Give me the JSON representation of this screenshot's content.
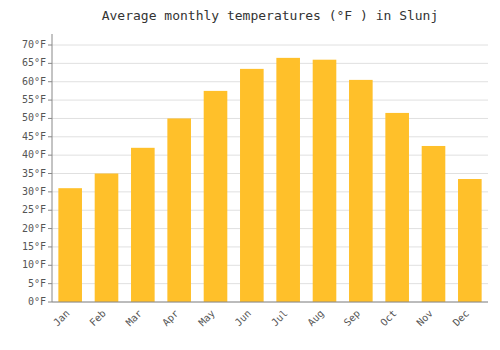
{
  "chart_data": {
    "type": "bar",
    "title": "Average monthly temperatures (°F ) in Slunj",
    "categories": [
      "Jan",
      "Feb",
      "Mar",
      "Apr",
      "May",
      "Jun",
      "Jul",
      "Aug",
      "Sep",
      "Oct",
      "Nov",
      "Dec"
    ],
    "values": [
      31,
      35,
      42,
      50,
      57.5,
      63.5,
      66.5,
      66,
      60.5,
      51.5,
      42.5,
      33.5
    ],
    "color": "#FFC02A",
    "ylim": [
      0,
      73
    ],
    "yticks": [
      {
        "value": 0,
        "label": "0°F"
      },
      {
        "value": 5,
        "label": "5°F"
      },
      {
        "value": 10,
        "label": "10°F"
      },
      {
        "value": 15,
        "label": "15°F"
      },
      {
        "value": 20,
        "label": "20°F"
      },
      {
        "value": 25,
        "label": "25°F"
      },
      {
        "value": 30,
        "label": "30°F"
      },
      {
        "value": 35,
        "label": "35°F"
      },
      {
        "value": 40,
        "label": "40°F"
      },
      {
        "value": 45,
        "label": "45°F"
      },
      {
        "value": 50,
        "label": "50°F"
      },
      {
        "value": 55,
        "label": "55°F"
      },
      {
        "value": 60,
        "label": "60°F"
      },
      {
        "value": 65,
        "label": "65°F"
      },
      {
        "value": 70,
        "label": "70°F"
      }
    ],
    "grid": true
  }
}
